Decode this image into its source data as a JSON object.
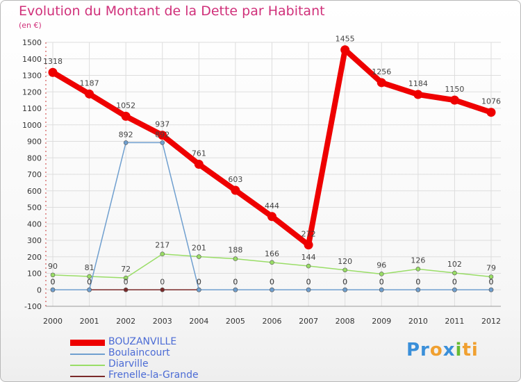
{
  "chart_data": {
    "type": "line",
    "title": "Evolution du Montant de la Dette par Habitant",
    "subtitle": "(en €)",
    "xlabel": "",
    "ylabel": "",
    "x": [
      "2000",
      "2001",
      "2002",
      "2003",
      "2004",
      "2005",
      "2006",
      "2007",
      "2008",
      "2009",
      "2010",
      "2011",
      "2012"
    ],
    "ylim": [
      -100,
      1500
    ],
    "yticks": [
      -100,
      0,
      100,
      200,
      300,
      400,
      500,
      600,
      700,
      800,
      900,
      1000,
      1100,
      1200,
      1300,
      1400,
      1500
    ],
    "grid": true,
    "legend_position": "bottom-left",
    "series": [
      {
        "name": "BOUZANVILLE",
        "color": "#ee0000",
        "values": [
          1318,
          1187,
          1052,
          937,
          761,
          603,
          444,
          272,
          1455,
          1256,
          1184,
          1150,
          1076
        ]
      },
      {
        "name": "Boulaincourt",
        "color": "#6f9fcf",
        "values": [
          0,
          0,
          892,
          892,
          0,
          0,
          0,
          0,
          0,
          0,
          0,
          0,
          0
        ]
      },
      {
        "name": "Diarville",
        "color": "#99dd66",
        "values": [
          90,
          81,
          72,
          217,
          201,
          188,
          166,
          144,
          120,
          96,
          126,
          102,
          79
        ]
      },
      {
        "name": "Frenelle-la-Grande",
        "color": "#7a2a2a",
        "values": [
          0,
          0,
          0,
          0,
          0,
          0,
          0,
          0,
          0,
          0,
          0,
          0,
          0
        ]
      }
    ]
  },
  "logo": {
    "parts": [
      "Pr",
      "o",
      "x",
      "i",
      "ti"
    ]
  }
}
